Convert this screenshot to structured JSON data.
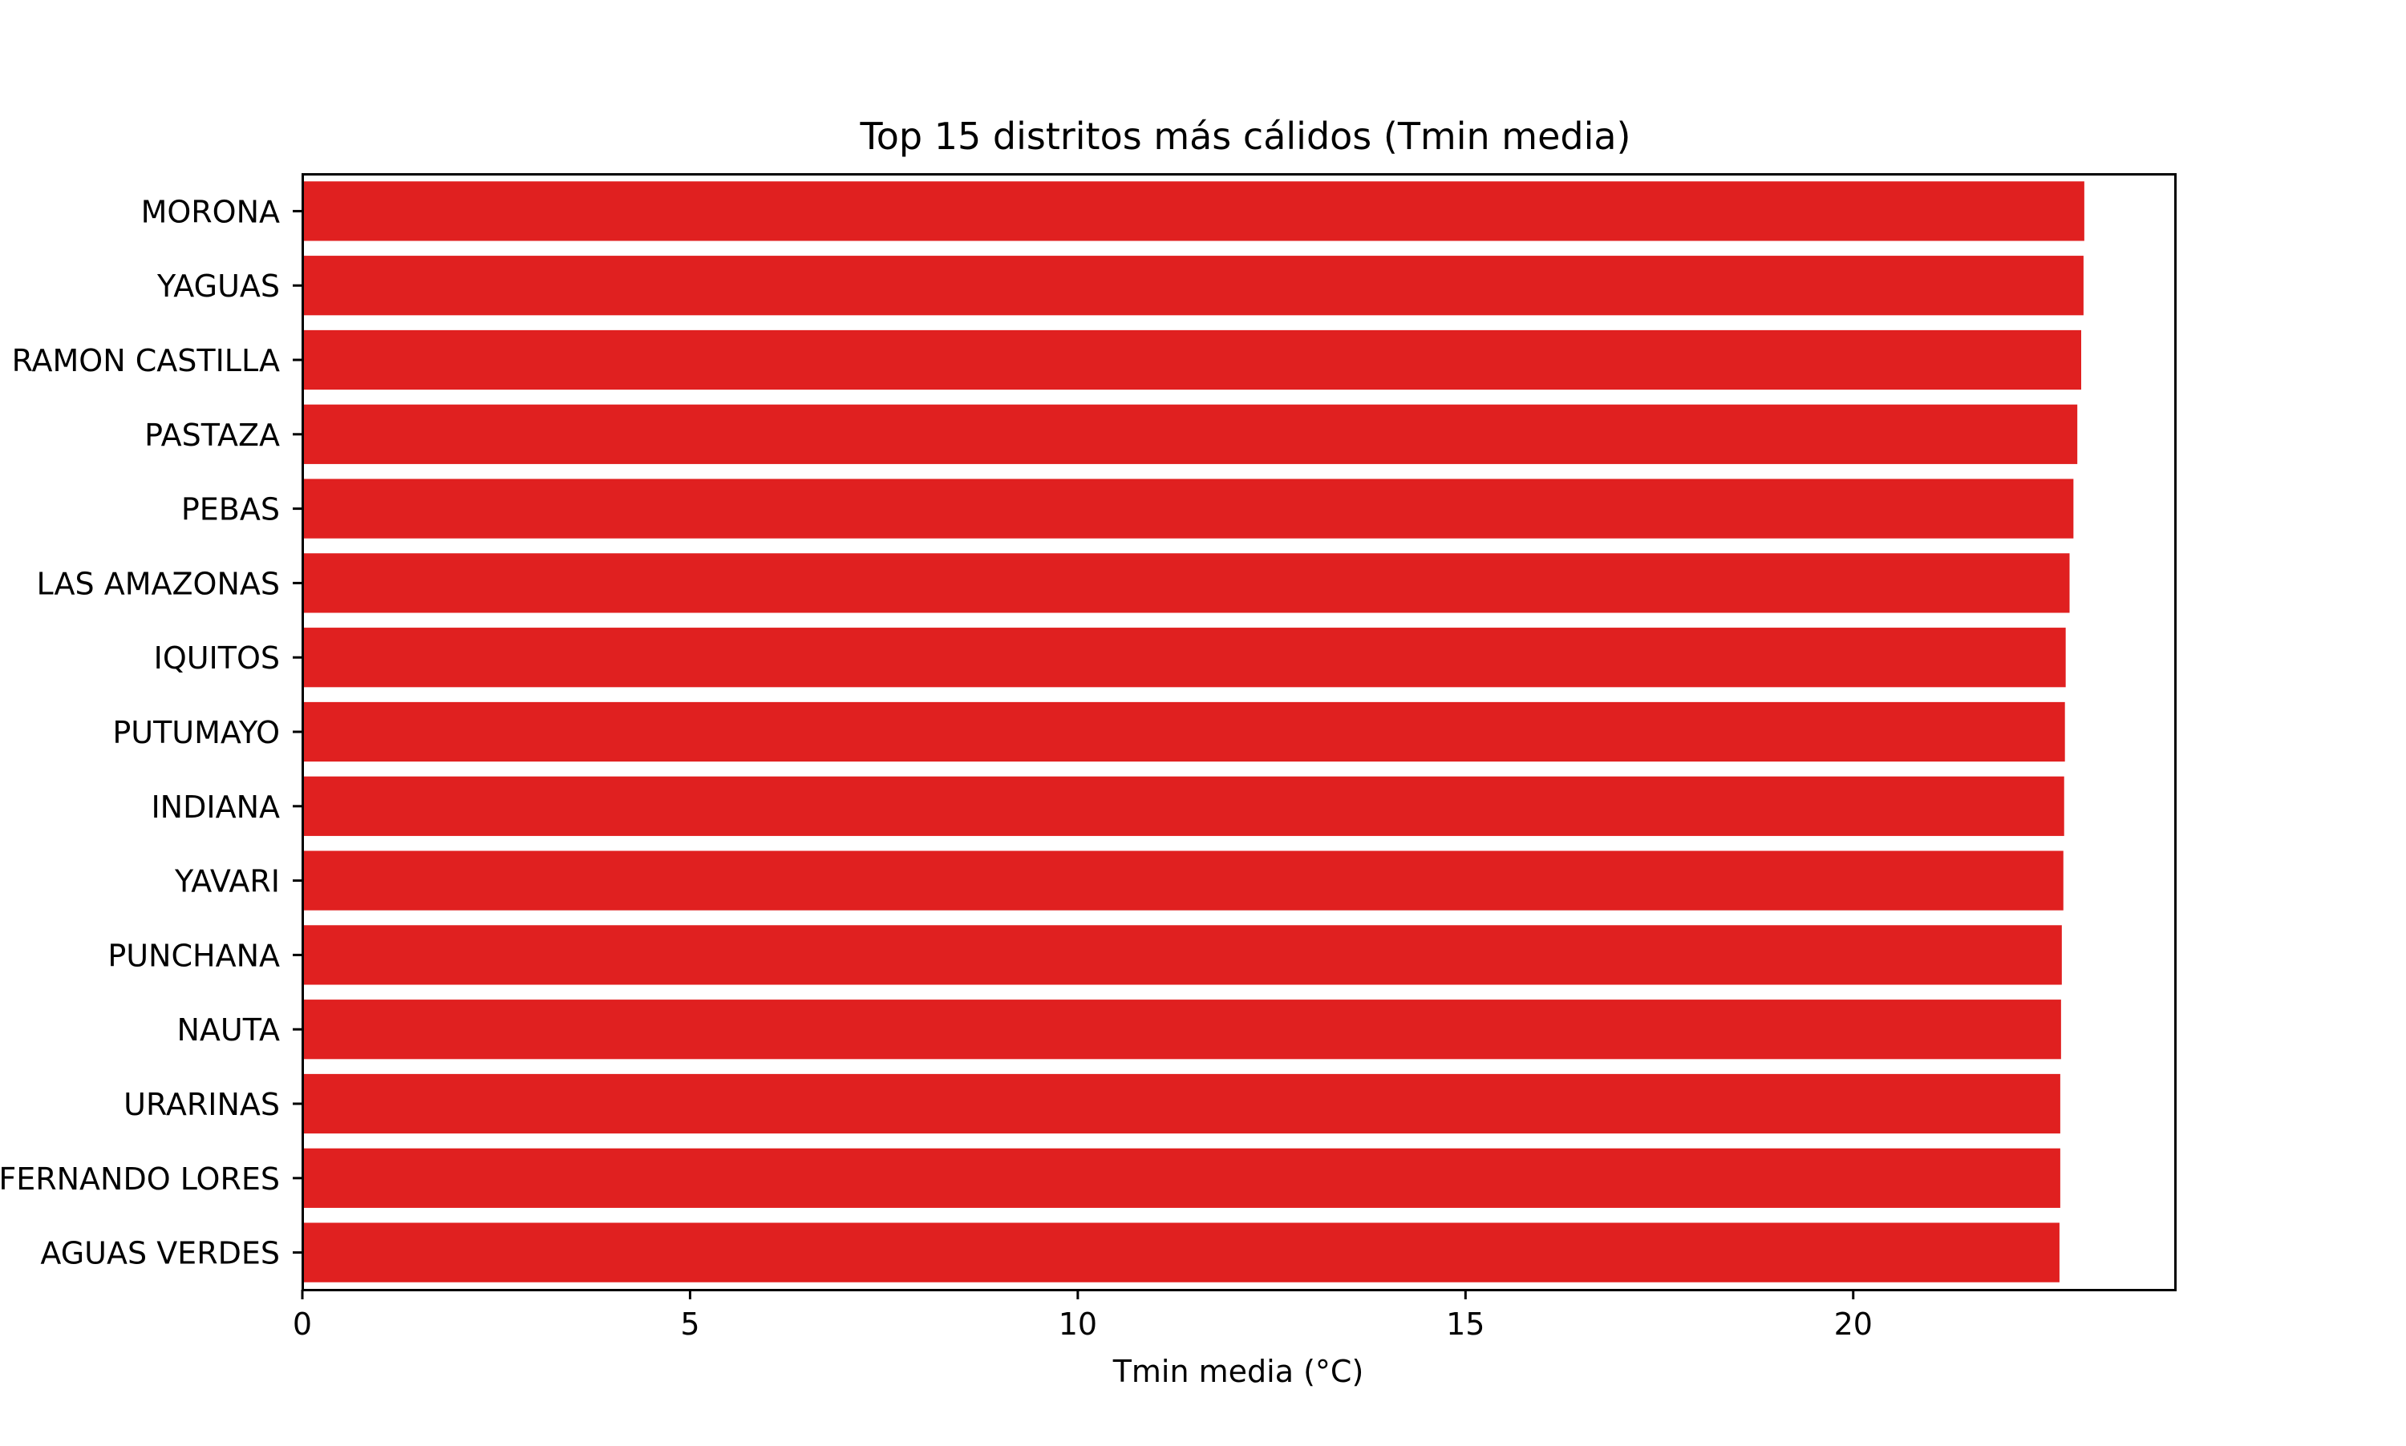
{
  "chart_data": {
    "type": "bar",
    "orientation": "horizontal",
    "title": "Top 15 distritos más cálidos (Tmin media)",
    "xlabel": "Tmin media (°C)",
    "ylabel": "",
    "categories": [
      "MORONA",
      "YAGUAS",
      "RAMON CASTILLA",
      "PASTAZA",
      "PEBAS",
      "LAS AMAZONAS",
      "IQUITOS",
      "PUTUMAYO",
      "INDIANA",
      "YAVARI",
      "PUNCHANA",
      "NAUTA",
      "URARINAS",
      "FERNANDO LORES",
      "AGUAS VERDES"
    ],
    "values": [
      22.98,
      22.97,
      22.94,
      22.89,
      22.84,
      22.79,
      22.74,
      22.73,
      22.72,
      22.71,
      22.69,
      22.68,
      22.67,
      22.67,
      22.66
    ],
    "xlim": [
      0,
      24.15
    ],
    "xticks": [
      0,
      5,
      10,
      15,
      20
    ],
    "grid": false,
    "legend": "none",
    "bar_color": "#e02020"
  }
}
